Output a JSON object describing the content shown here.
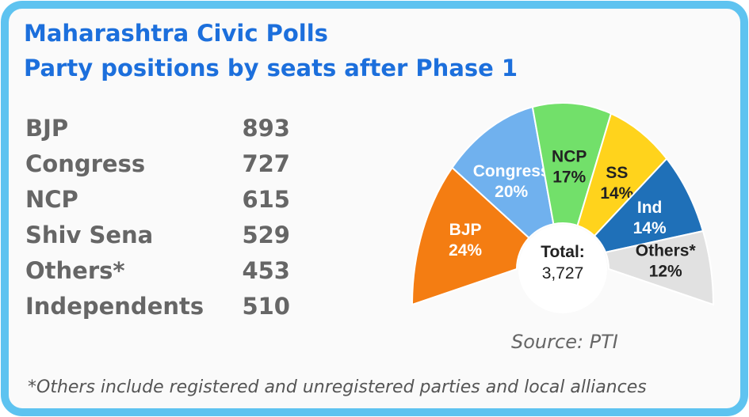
{
  "header": {
    "title_line1": "Maharashtra Civic Polls",
    "title_line2": "Party positions by seats after Phase 1"
  },
  "table": {
    "rows": [
      [
        "BJP",
        893
      ],
      [
        "Congress",
        727
      ],
      [
        "NCP",
        615
      ],
      [
        "Shiv Sena",
        529
      ],
      [
        "Others*",
        453
      ],
      [
        "Independents",
        510
      ]
    ]
  },
  "chart_data": {
    "type": "pie",
    "style": "half-donut",
    "categories": [
      "BJP",
      "Congress",
      "NCP",
      "SS",
      "Ind",
      "Others*"
    ],
    "values": [
      24,
      20,
      17,
      14,
      14,
      12
    ],
    "value_labels": [
      "24%",
      "20%",
      "17%",
      "14%",
      "14%",
      "12%"
    ],
    "colors": [
      "#f47d12",
      "#70b1ee",
      "#72e06a",
      "#ffd31c",
      "#1f70b8",
      "#e1e1e1"
    ],
    "label_colors": [
      "#ffffff",
      "#ffffff",
      "#222222",
      "#222222",
      "#ffffff",
      "#222222"
    ],
    "center_label": "Total:",
    "center_value": "3,727"
  },
  "source": "Source: PTI",
  "footnote": "*Others include registered and unregistered parties and local alliances"
}
